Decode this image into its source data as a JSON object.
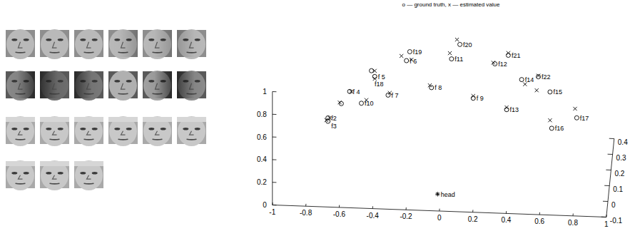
{
  "chart_data": {
    "type": "scatter3d",
    "title": "o — ground truth, x — estimated value",
    "xlim": [
      -1,
      1
    ],
    "ylim": [
      -0.1,
      0.4
    ],
    "zlim": [
      0,
      1
    ],
    "xticks": [
      -1,
      -0.8,
      -0.6,
      -0.4,
      -0.2,
      0,
      0.2,
      0.4,
      0.6,
      0.8,
      1
    ],
    "yticks": [
      -0.1,
      0,
      0.1,
      0.2,
      0.3,
      0.4
    ],
    "zticks": [
      0,
      0.2,
      0.4,
      0.6,
      0.8,
      1
    ],
    "grid": false,
    "series": [
      {
        "marker": "circle",
        "color": "#000000",
        "labels": [
          null,
          "f2",
          "f3",
          "f 4",
          "f 5",
          "f18",
          "f19",
          "f 6",
          "f 7",
          "f10",
          "f 8",
          "f11",
          "f20",
          "f12",
          "f21",
          "f 9",
          "f14",
          "f22",
          "f15",
          "f13",
          "f16",
          "f17"
        ],
        "x": [
          -0.62,
          -0.7,
          -0.7,
          -0.57,
          -0.42,
          -0.44,
          -0.21,
          -0.23,
          -0.34,
          -0.5,
          -0.08,
          0.04,
          0.09,
          0.3,
          0.38,
          0.17,
          0.46,
          0.56,
          0.63,
          0.37,
          0.64,
          0.79
        ],
        "y": [
          0.25,
          0.25,
          0.25,
          0.25,
          0.25,
          0.25,
          0.25,
          0.25,
          0.25,
          0.25,
          0.25,
          0.25,
          0.25,
          0.25,
          0.25,
          0.25,
          0.25,
          0.25,
          0.25,
          0.25,
          0.25,
          0.25
        ],
        "z": [
          0.43,
          0.3,
          0.27,
          0.54,
          0.68,
          0.73,
          0.91,
          0.83,
          0.52,
          0.44,
          0.6,
          0.86,
          0.99,
          0.83,
          0.91,
          0.52,
          0.7,
          0.73,
          0.6,
          0.43,
          0.28,
          0.38
        ]
      },
      {
        "marker": "x",
        "color": "#000000",
        "x": [
          -0.63,
          -0.69,
          -0.71,
          -0.56,
          -0.42,
          -0.42,
          -0.26,
          -0.2,
          -0.33,
          -0.47,
          -0.09,
          0.03,
          0.07,
          0.29,
          0.38,
          0.17,
          0.48,
          0.56,
          0.55,
          0.37,
          0.63,
          0.78
        ],
        "y": [
          0.25,
          0.25,
          0.25,
          0.25,
          0.25,
          0.25,
          0.25,
          0.25,
          0.25,
          0.25,
          0.25,
          0.25,
          0.28,
          0.25,
          0.25,
          0.25,
          0.25,
          0.25,
          0.25,
          0.25,
          0.25,
          0.25
        ],
        "z": [
          0.44,
          0.3,
          0.28,
          0.54,
          0.66,
          0.73,
          0.87,
          0.84,
          0.54,
          0.47,
          0.62,
          0.91,
          0.99,
          0.84,
          0.93,
          0.54,
          0.66,
          0.74,
          0.61,
          0.45,
          0.35,
          0.46
        ]
      },
      {
        "marker": "star",
        "color": "#000000",
        "labels": [
          "head"
        ],
        "x": [
          -0.02
        ],
        "y": [
          0
        ],
        "z": [
          0.01
        ]
      }
    ]
  }
}
